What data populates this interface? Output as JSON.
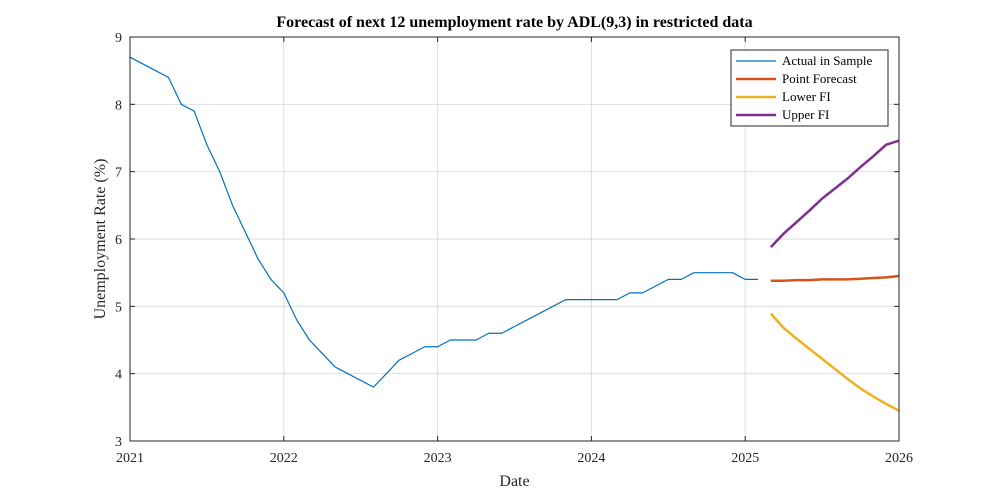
{
  "chart_data": {
    "type": "line",
    "title": "Forecast of next 12 unemployment rate by ADL(9,3) in restricted data",
    "xlabel": "Date",
    "ylabel": "Unemployment Rate (%)",
    "xlim": [
      "2021-01",
      "2026-01"
    ],
    "ylim": [
      3,
      9
    ],
    "xticks": [
      "2021",
      "2022",
      "2023",
      "2024",
      "2025",
      "2026"
    ],
    "yticks": [
      3,
      4,
      5,
      6,
      7,
      8,
      9
    ],
    "grid": true,
    "legend_position": "top-right",
    "series": [
      {
        "name": "Actual in Sample",
        "color": "#0072BD",
        "line_width": "thin",
        "x": [
          "2021-01",
          "2021-02",
          "2021-03",
          "2021-04",
          "2021-05",
          "2021-06",
          "2021-07",
          "2021-08",
          "2021-09",
          "2021-10",
          "2021-11",
          "2021-12",
          "2022-01",
          "2022-02",
          "2022-03",
          "2022-04",
          "2022-05",
          "2022-06",
          "2022-07",
          "2022-08",
          "2022-09",
          "2022-10",
          "2022-11",
          "2022-12",
          "2023-01",
          "2023-02",
          "2023-03",
          "2023-04",
          "2023-05",
          "2023-06",
          "2023-07",
          "2023-08",
          "2023-09",
          "2023-10",
          "2023-11",
          "2023-12",
          "2024-01",
          "2024-02",
          "2024-03",
          "2024-04",
          "2024-05",
          "2024-06",
          "2024-07",
          "2024-08",
          "2024-09",
          "2024-10",
          "2024-11",
          "2024-12",
          "2025-01",
          "2025-02"
        ],
        "y": [
          8.7,
          8.6,
          8.5,
          8.4,
          8.0,
          7.9,
          7.4,
          7.0,
          6.5,
          6.1,
          5.7,
          5.4,
          5.2,
          4.8,
          4.5,
          4.3,
          4.1,
          4.0,
          3.9,
          3.8,
          4.0,
          4.2,
          4.3,
          4.4,
          4.4,
          4.5,
          4.5,
          4.5,
          4.6,
          4.6,
          4.7,
          4.8,
          4.9,
          5.0,
          5.1,
          5.1,
          5.1,
          5.1,
          5.1,
          5.2,
          5.2,
          5.3,
          5.4,
          5.4,
          5.5,
          5.5,
          5.5,
          5.5,
          5.4,
          5.4
        ]
      },
      {
        "name": "Point Forecast",
        "color": "#D95319",
        "line_width": "thick",
        "x": [
          "2025-03",
          "2025-04",
          "2025-05",
          "2025-06",
          "2025-07",
          "2025-08",
          "2025-09",
          "2025-10",
          "2025-11",
          "2025-12",
          "2026-01"
        ],
        "y": [
          5.38,
          5.38,
          5.39,
          5.39,
          5.4,
          5.4,
          5.4,
          5.41,
          5.42,
          5.43,
          5.45
        ]
      },
      {
        "name": "Lower FI",
        "color": "#EDB120",
        "line_width": "thick",
        "x": [
          "2025-03",
          "2025-04",
          "2025-05",
          "2025-06",
          "2025-07",
          "2025-08",
          "2025-09",
          "2025-10",
          "2025-11",
          "2025-12",
          "2026-01"
        ],
        "y": [
          4.89,
          4.68,
          4.52,
          4.37,
          4.22,
          4.07,
          3.92,
          3.78,
          3.66,
          3.55,
          3.45
        ]
      },
      {
        "name": "Upper FI",
        "color": "#7E2F8E",
        "line_width": "thick",
        "x": [
          "2025-03",
          "2025-04",
          "2025-05",
          "2025-06",
          "2025-07",
          "2025-08",
          "2025-09",
          "2025-10",
          "2025-11",
          "2025-12",
          "2026-01"
        ],
        "y": [
          5.88,
          6.08,
          6.25,
          6.42,
          6.6,
          6.75,
          6.9,
          7.07,
          7.23,
          7.4,
          7.46
        ]
      }
    ]
  }
}
